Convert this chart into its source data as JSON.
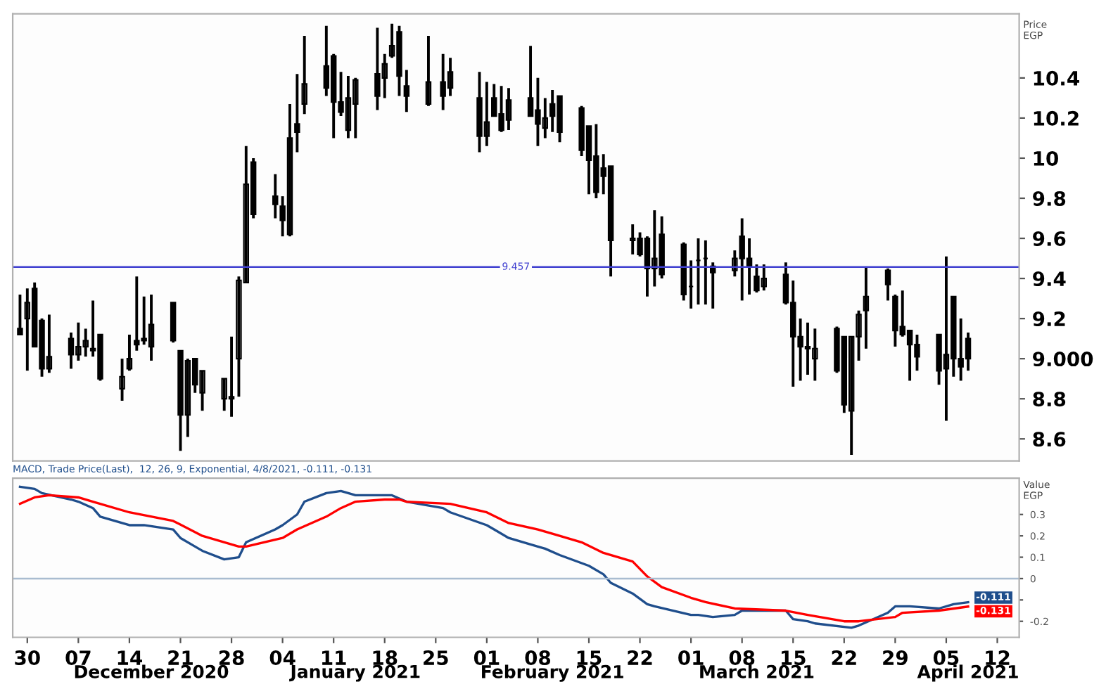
{
  "chart_data": [
    {
      "type": "candlestick",
      "color": "#000000",
      "ylabel": "Price\nEGP",
      "tick_labels": "y",
      "grid": false,
      "legend": false,
      "x": [
        "2020-11-29",
        "2020-11-30",
        "2020-12-01",
        "2020-12-02",
        "2020-12-03",
        "2020-12-06",
        "2020-12-07",
        "2020-12-08",
        "2020-12-09",
        "2020-12-10",
        "2020-12-13",
        "2020-12-14",
        "2020-12-15",
        "2020-12-16",
        "2020-12-17",
        "2020-12-20",
        "2020-12-21",
        "2020-12-22",
        "2020-12-23",
        "2020-12-24",
        "2020-12-27",
        "2020-12-28",
        "2020-12-29",
        "2020-12-30",
        "2020-12-31",
        "2021-01-03",
        "2021-01-04",
        "2021-01-05",
        "2021-01-06",
        "2021-01-07",
        "2021-01-10",
        "2021-01-11",
        "2021-01-12",
        "2021-01-13",
        "2021-01-14",
        "2021-01-17",
        "2021-01-18",
        "2021-01-19",
        "2021-01-20",
        "2021-01-21",
        "2021-01-24",
        "2021-01-26",
        "2021-01-27",
        "2021-01-31",
        "2021-02-01",
        "2021-02-02",
        "2021-02-03",
        "2021-02-04",
        "2021-02-07",
        "2021-02-08",
        "2021-02-09",
        "2021-02-10",
        "2021-02-11",
        "2021-02-14",
        "2021-02-15",
        "2021-02-16",
        "2021-02-17",
        "2021-02-18",
        "2021-02-21",
        "2021-02-22",
        "2021-02-23",
        "2021-02-24",
        "2021-02-25",
        "2021-02-28",
        "2021-03-01",
        "2021-03-02",
        "2021-03-03",
        "2021-03-04",
        "2021-03-07",
        "2021-03-08",
        "2021-03-09",
        "2021-03-10",
        "2021-03-11",
        "2021-03-14",
        "2021-03-15",
        "2021-03-16",
        "2021-03-17",
        "2021-03-18",
        "2021-03-21",
        "2021-03-22",
        "2021-03-23",
        "2021-03-24",
        "2021-03-25",
        "2021-03-28",
        "2021-03-29",
        "2021-03-30",
        "2021-03-31",
        "2021-04-01",
        "2021-04-04",
        "2021-04-05",
        "2021-04-06",
        "2021-04-07",
        "2021-04-08"
      ],
      "ohlc": [
        [
          9.15,
          9.32,
          9.12,
          9.12
        ],
        [
          9.2,
          9.35,
          8.94,
          9.28
        ],
        [
          9.35,
          9.38,
          9.06,
          9.06
        ],
        [
          9.19,
          9.2,
          8.91,
          8.95
        ],
        [
          8.95,
          9.22,
          8.93,
          9.01
        ],
        [
          9.1,
          9.13,
          8.95,
          9.02
        ],
        [
          9.02,
          9.18,
          8.99,
          9.06
        ],
        [
          9.06,
          9.15,
          9.01,
          9.09
        ],
        [
          9.04,
          9.29,
          9.01,
          9.05
        ],
        [
          9.12,
          9.12,
          8.89,
          8.9
        ],
        [
          8.85,
          9.0,
          8.79,
          8.91
        ],
        [
          8.95,
          9.12,
          8.94,
          9.0
        ],
        [
          9.09,
          9.41,
          9.04,
          9.07
        ],
        [
          9.1,
          9.31,
          9.07,
          9.09
        ],
        [
          9.06,
          9.32,
          8.99,
          9.17
        ],
        [
          9.28,
          9.28,
          9.08,
          9.09
        ],
        [
          9.04,
          9.04,
          8.54,
          8.72
        ],
        [
          8.72,
          9.0,
          8.61,
          8.99
        ],
        [
          9.0,
          9.0,
          8.83,
          8.87
        ],
        [
          8.83,
          8.94,
          8.74,
          8.94
        ],
        [
          8.8,
          8.9,
          8.74,
          8.9
        ],
        [
          8.8,
          9.11,
          8.71,
          8.81
        ],
        [
          9.0,
          9.41,
          8.81,
          9.39
        ],
        [
          9.38,
          10.06,
          9.38,
          9.87
        ],
        [
          9.98,
          10.0,
          9.7,
          9.72
        ],
        [
          9.81,
          9.92,
          9.7,
          9.77
        ],
        [
          9.76,
          9.81,
          9.61,
          9.69
        ],
        [
          9.62,
          10.27,
          9.61,
          10.1
        ],
        [
          10.17,
          10.42,
          10.03,
          10.13
        ],
        [
          10.27,
          10.61,
          10.22,
          10.37
        ],
        [
          10.46,
          10.66,
          10.31,
          10.35
        ],
        [
          10.51,
          10.52,
          10.1,
          10.28
        ],
        [
          10.28,
          10.43,
          10.21,
          10.23
        ],
        [
          10.14,
          10.41,
          10.1,
          10.3
        ],
        [
          10.27,
          10.4,
          10.1,
          10.39
        ],
        [
          10.42,
          10.65,
          10.24,
          10.31
        ],
        [
          10.4,
          10.52,
          10.3,
          10.47
        ],
        [
          10.51,
          10.67,
          10.5,
          10.56
        ],
        [
          10.63,
          10.66,
          10.31,
          10.41
        ],
        [
          10.36,
          10.44,
          10.23,
          10.31
        ],
        [
          10.27,
          10.61,
          10.26,
          10.38
        ],
        [
          10.38,
          10.52,
          10.24,
          10.31
        ],
        [
          10.35,
          10.5,
          10.31,
          10.43
        ],
        [
          10.3,
          10.43,
          10.03,
          10.11
        ],
        [
          10.11,
          10.38,
          10.06,
          10.18
        ],
        [
          10.3,
          10.37,
          10.21,
          10.21
        ],
        [
          10.22,
          10.36,
          10.13,
          10.14
        ],
        [
          10.19,
          10.35,
          10.14,
          10.29
        ],
        [
          10.3,
          10.56,
          10.21,
          10.21
        ],
        [
          10.24,
          10.4,
          10.06,
          10.17
        ],
        [
          10.15,
          10.3,
          10.1,
          10.2
        ],
        [
          10.27,
          10.34,
          10.13,
          10.21
        ],
        [
          10.31,
          10.31,
          10.08,
          10.13
        ],
        [
          10.25,
          10.26,
          10.01,
          10.04
        ],
        [
          10.16,
          10.16,
          9.82,
          9.99
        ],
        [
          10.01,
          10.17,
          9.8,
          9.83
        ],
        [
          9.95,
          10.02,
          9.82,
          9.91
        ],
        [
          9.96,
          9.96,
          9.41,
          9.59
        ],
        [
          9.59,
          9.67,
          9.52,
          9.6
        ],
        [
          9.6,
          9.63,
          9.51,
          9.52
        ],
        [
          9.6,
          9.61,
          9.31,
          9.45
        ],
        [
          9.45,
          9.74,
          9.36,
          9.5
        ],
        [
          9.62,
          9.71,
          9.4,
          9.42
        ],
        [
          9.57,
          9.58,
          9.29,
          9.32
        ],
        [
          9.36,
          9.49,
          9.25,
          9.36
        ],
        [
          9.49,
          9.6,
          9.27,
          9.49
        ],
        [
          9.5,
          9.59,
          9.27,
          9.5
        ],
        [
          9.46,
          9.48,
          9.25,
          9.43
        ],
        [
          9.44,
          9.54,
          9.41,
          9.5
        ],
        [
          9.61,
          9.7,
          9.29,
          9.5
        ],
        [
          9.5,
          9.6,
          9.32,
          9.46
        ],
        [
          9.41,
          9.47,
          9.33,
          9.34
        ],
        [
          9.36,
          9.47,
          9.34,
          9.4
        ],
        [
          9.42,
          9.48,
          9.27,
          9.28
        ],
        [
          9.28,
          9.39,
          8.86,
          9.11
        ],
        [
          9.11,
          9.2,
          8.89,
          9.06
        ],
        [
          9.06,
          9.18,
          8.92,
          9.05
        ],
        [
          9.0,
          9.15,
          8.89,
          9.05
        ],
        [
          9.15,
          9.16,
          8.93,
          8.94
        ],
        [
          9.11,
          9.11,
          8.73,
          8.77
        ],
        [
          8.74,
          9.11,
          8.52,
          9.11
        ],
        [
          9.11,
          9.24,
          8.99,
          9.22
        ],
        [
          9.24,
          9.46,
          9.05,
          9.31
        ],
        [
          9.44,
          9.45,
          9.29,
          9.37
        ],
        [
          9.31,
          9.32,
          9.06,
          9.14
        ],
        [
          9.16,
          9.34,
          9.11,
          9.12
        ],
        [
          9.14,
          9.14,
          8.89,
          9.07
        ],
        [
          9.07,
          9.12,
          8.94,
          9.01
        ],
        [
          9.12,
          9.12,
          8.87,
          8.94
        ],
        [
          8.95,
          9.51,
          8.69,
          9.02
        ],
        [
          9.31,
          9.31,
          8.91,
          9.0
        ],
        [
          9.0,
          9.2,
          8.89,
          8.96
        ],
        [
          9.1,
          9.13,
          8.94,
          9.0
        ]
      ],
      "xlim": [
        "2020-11-28",
        "2021-04-15"
      ],
      "ylim": [
        8.49,
        10.72
      ],
      "yticks": [
        10.4,
        10.2,
        10,
        9.8,
        9.6,
        9.4,
        9.2,
        {
          "value": 9,
          "label": "9.000"
        },
        8.8,
        8.6
      ],
      "ref_lines": [
        {
          "axis": "y",
          "value": 9.457,
          "label": "9.457",
          "color": "#4040d0"
        }
      ]
    },
    {
      "type": "line",
      "title": "MACD, Trade Price(Last),  12, 26, 9, Exponential, 4/8/2021, -0.111, -0.131",
      "ylabel": "Value\nEGP",
      "grid": false,
      "legend": false,
      "marker": "none",
      "line_style": "solid",
      "series": [
        {
          "color": "#1f4e8c",
          "x": [
            "2020-11-29",
            "2020-12-01",
            "2020-12-02",
            "2020-12-06",
            "2020-12-07",
            "2020-12-09",
            "2020-12-10",
            "2020-12-14",
            "2020-12-16",
            "2020-12-20",
            "2020-12-21",
            "2020-12-23",
            "2020-12-24",
            "2020-12-27",
            "2020-12-29",
            "2020-12-30",
            "2021-01-03",
            "2021-01-04",
            "2021-01-06",
            "2021-01-07",
            "2021-01-10",
            "2021-01-12",
            "2021-01-14",
            "2021-01-19",
            "2021-01-21",
            "2021-01-26",
            "2021-01-27",
            "2021-02-01",
            "2021-02-02",
            "2021-02-04",
            "2021-02-07",
            "2021-02-09",
            "2021-02-11",
            "2021-02-15",
            "2021-02-17",
            "2021-02-18",
            "2021-02-21",
            "2021-02-23",
            "2021-02-24",
            "2021-03-01",
            "2021-03-02",
            "2021-03-04",
            "2021-03-07",
            "2021-03-08",
            "2021-03-14",
            "2021-03-15",
            "2021-03-17",
            "2021-03-18",
            "2021-03-23",
            "2021-03-24",
            "2021-03-28",
            "2021-03-29",
            "2021-03-31",
            "2021-04-04",
            "2021-04-06",
            "2021-04-08"
          ],
          "values": [
            0.43,
            0.42,
            0.4,
            0.37,
            0.36,
            0.33,
            0.29,
            0.25,
            0.25,
            0.23,
            0.19,
            0.15,
            0.13,
            0.09,
            0.1,
            0.17,
            0.23,
            0.25,
            0.3,
            0.36,
            0.4,
            0.41,
            0.39,
            0.39,
            0.36,
            0.33,
            0.31,
            0.25,
            0.23,
            0.19,
            0.16,
            0.14,
            0.11,
            0.06,
            0.02,
            -0.02,
            -0.07,
            -0.12,
            -0.13,
            -0.17,
            -0.17,
            -0.18,
            -0.17,
            -0.15,
            -0.15,
            -0.19,
            -0.2,
            -0.21,
            -0.23,
            -0.22,
            -0.16,
            -0.13,
            -0.13,
            -0.14,
            -0.12,
            -0.111
          ],
          "value_labels": [
            null,
            null,
            null,
            null,
            null,
            null,
            null,
            null,
            null,
            null,
            null,
            null,
            null,
            null,
            null,
            null,
            null,
            null,
            null,
            null,
            null,
            null,
            null,
            null,
            null,
            null,
            null,
            null,
            null,
            null,
            null,
            null,
            null,
            null,
            null,
            null,
            null,
            null,
            null,
            null,
            null,
            null,
            null,
            null,
            null,
            null,
            null,
            null,
            null,
            null,
            null,
            null,
            null,
            null,
            null,
            "-0.111"
          ]
        },
        {
          "color": "#ff0000",
          "x": [
            "2020-11-29",
            "2020-12-01",
            "2020-12-03",
            "2020-12-07",
            "2020-12-09",
            "2020-12-14",
            "2020-12-20",
            "2020-12-24",
            "2020-12-29",
            "2020-12-30",
            "2021-01-04",
            "2021-01-06",
            "2021-01-10",
            "2021-01-12",
            "2021-01-14",
            "2021-01-18",
            "2021-01-20",
            "2021-01-21",
            "2021-01-27",
            "2021-02-01",
            "2021-02-04",
            "2021-02-08",
            "2021-02-10",
            "2021-02-14",
            "2021-02-17",
            "2021-02-21",
            "2021-02-23",
            "2021-02-25",
            "2021-03-01",
            "2021-03-03",
            "2021-03-07",
            "2021-03-14",
            "2021-03-17",
            "2021-03-22",
            "2021-03-24",
            "2021-03-29",
            "2021-03-30",
            "2021-04-04",
            "2021-04-08"
          ],
          "values": [
            0.35,
            0.38,
            0.39,
            0.38,
            0.36,
            0.31,
            0.27,
            0.2,
            0.15,
            0.15,
            0.19,
            0.23,
            0.29,
            0.33,
            0.36,
            0.37,
            0.37,
            0.36,
            0.35,
            0.31,
            0.26,
            0.23,
            0.21,
            0.17,
            0.12,
            0.08,
            0.01,
            -0.04,
            -0.09,
            -0.11,
            -0.14,
            -0.15,
            -0.17,
            -0.2,
            -0.2,
            -0.18,
            -0.16,
            -0.15,
            -0.131
          ],
          "value_labels": [
            null,
            null,
            null,
            null,
            null,
            null,
            null,
            null,
            null,
            null,
            null,
            null,
            null,
            null,
            null,
            null,
            null,
            null,
            null,
            null,
            null,
            null,
            null,
            null,
            null,
            null,
            null,
            null,
            null,
            null,
            null,
            null,
            null,
            null,
            null,
            null,
            null,
            null,
            "-0.131"
          ]
        }
      ],
      "xlim": [
        "2020-11-28",
        "2021-04-15"
      ],
      "xticks": [
        {
          "value": "2020-11-30",
          "label": "30"
        },
        {
          "value": "2020-12-07",
          "label": "07"
        },
        {
          "value": "2020-12-14",
          "label": "14"
        },
        {
          "value": "2020-12-21",
          "label": "21"
        },
        {
          "value": "2020-12-28",
          "label": "28"
        },
        {
          "value": "2021-01-04",
          "label": "04"
        },
        {
          "value": "2021-01-11",
          "label": "11"
        },
        {
          "value": "2021-01-18",
          "label": "18"
        },
        {
          "value": "2021-01-25",
          "label": "25"
        },
        {
          "value": "2021-02-01",
          "label": "01"
        },
        {
          "value": "2021-02-08",
          "label": "08"
        },
        {
          "value": "2021-02-15",
          "label": "15"
        },
        {
          "value": "2021-02-22",
          "label": "22"
        },
        {
          "value": "2021-03-01",
          "label": "01"
        },
        {
          "value": "2021-03-08",
          "label": "08"
        },
        {
          "value": "2021-03-15",
          "label": "15"
        },
        {
          "value": "2021-03-22",
          "label": "22"
        },
        {
          "value": "2021-03-29",
          "label": "29"
        },
        {
          "value": "2021-04-05",
          "label": "05"
        },
        {
          "value": "2021-04-12",
          "label": "12"
        }
      ],
      "x2lim": [
        "2020-11-28",
        "2021-04-15"
      ],
      "x2ticks": [
        {
          "value": "2020-12-17",
          "label": "December 2020"
        },
        {
          "value": "2021-01-14",
          "label": "January 2021"
        },
        {
          "value": "2021-02-10",
          "label": "February 2021"
        },
        {
          "value": "2021-03-10",
          "label": "March 2021"
        },
        {
          "value": "2021-04-08",
          "label": "April 2021"
        }
      ],
      "ylim": [
        -0.275,
        0.47
      ],
      "yticks": [
        0.3,
        0.2,
        0.1,
        0,
        {
          "value": -0.1,
          "label": null
        },
        -0.2
      ],
      "ref_lines": [
        {
          "axis": "y",
          "value": 0,
          "color": "#a9bcd0"
        }
      ]
    }
  ]
}
